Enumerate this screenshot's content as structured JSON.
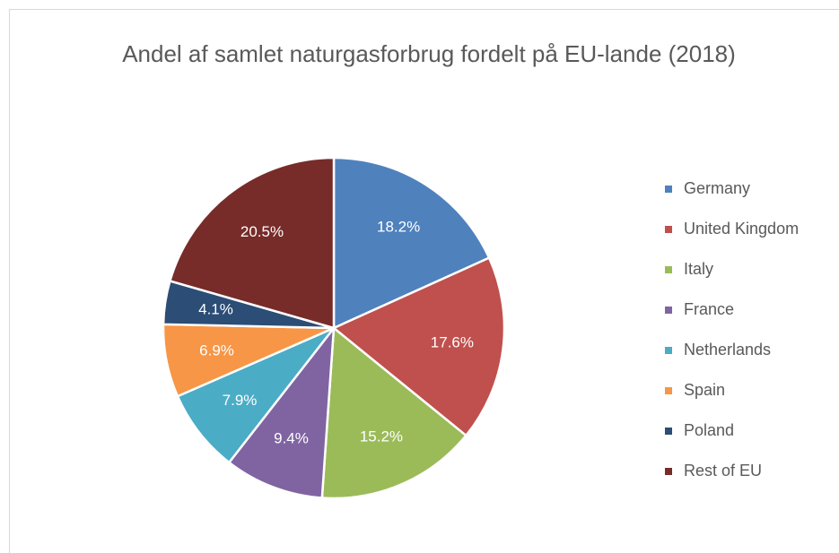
{
  "chart_data": {
    "type": "pie",
    "title": "Andel af samlet naturgasforbrug fordelt på EU-lande (2018)",
    "categories": [
      "Germany",
      "United Kingdom",
      "Italy",
      "France",
      "Netherlands",
      "Spain",
      "Poland",
      "Rest of EU"
    ],
    "values": [
      18.2,
      17.6,
      15.2,
      9.4,
      7.9,
      6.9,
      4.1,
      20.5
    ],
    "value_labels": [
      "18.2%",
      "17.6%",
      "15.2%",
      "9.4%",
      "7.9%",
      "6.9%",
      "4.1%",
      "20.5%"
    ],
    "colors": [
      "#4f81bd",
      "#c0504d",
      "#9bbb59",
      "#8064a2",
      "#4bacc6",
      "#f79646",
      "#2c4d75",
      "#772c2a"
    ],
    "legend": "right"
  }
}
